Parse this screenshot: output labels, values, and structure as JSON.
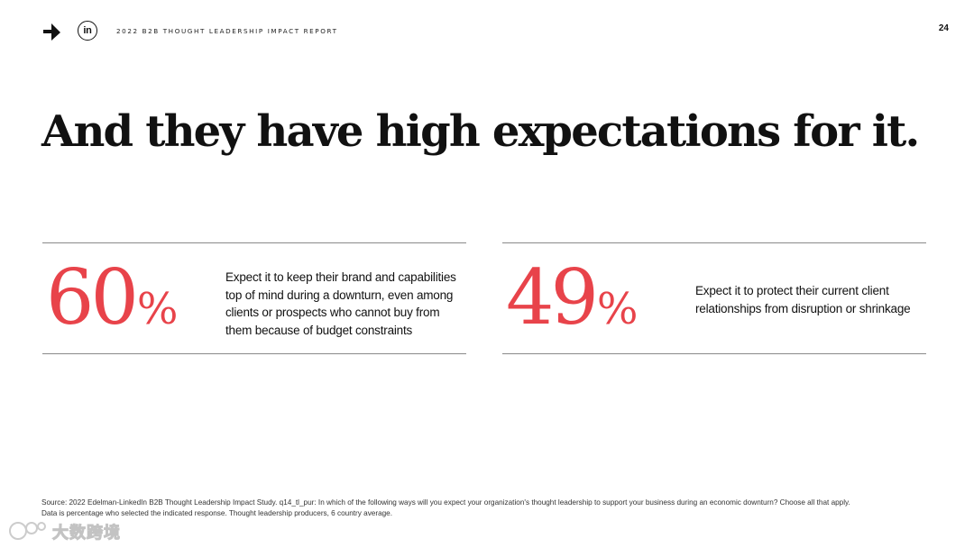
{
  "header": {
    "report_title": "2022 B2B THOUGHT LEADERSHIP IMPACT REPORT",
    "linkedin_label": "in",
    "page_number": "24"
  },
  "headline": "And they have high expectations for it.",
  "stats": [
    {
      "value": "60",
      "unit": "%",
      "description": "Expect it to keep their brand and capabilities top of mind during a downturn, even among clients or prospects who cannot buy from them because of budget constraints"
    },
    {
      "value": "49",
      "unit": "%",
      "description": "Expect it to protect their current client relationships from disruption or shrinkage"
    }
  ],
  "source": {
    "line1": "Source: 2022 Edelman-LinkedIn B2B Thought Leadership Impact Study. q14_tl_pur: In which of the following ways will you expect your organization's thought leadership to support your business during an economic downturn? Choose all that apply.",
    "line2": "Data is percentage who selected the indicated response. Thought leadership producers, 6 country average."
  },
  "watermark": {
    "text": "大数跨境"
  },
  "colors": {
    "accent": "#e8434a",
    "text": "#111111",
    "rule": "#8a8a8a"
  }
}
